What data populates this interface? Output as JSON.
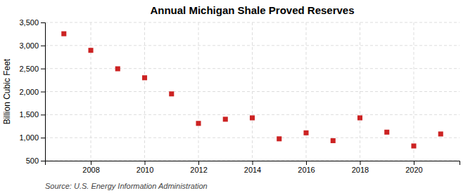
{
  "chart_data": {
    "type": "scatter",
    "title": "Annual Michigan Shale Proved Reserves",
    "y_label": "Billion Cubic Feet",
    "source": "Source: U.S. Energy Information Administration",
    "x": [
      2007,
      2008,
      2009,
      2010,
      2011,
      2012,
      2013,
      2014,
      2015,
      2016,
      2017,
      2018,
      2019,
      2020,
      2021
    ],
    "values": [
      3255,
      2895,
      2495,
      2300,
      1950,
      1310,
      1400,
      1430,
      975,
      1105,
      935,
      1430,
      1120,
      820,
      1080
    ],
    "color": "#cc2222",
    "marker": "square",
    "xlim": [
      2006.3,
      2021.7
    ],
    "xticks": [
      2008,
      2010,
      2012,
      2014,
      2016,
      2018,
      2020
    ],
    "ylim": [
      500,
      3500
    ],
    "yticks": [
      500,
      {
        "value": 1000,
        "label": "1,000"
      },
      {
        "value": 1500,
        "label": "1,500"
      },
      {
        "value": 2000,
        "label": "2,000"
      },
      {
        "value": 2500,
        "label": "2,500"
      },
      {
        "value": 3000,
        "label": "3,000"
      },
      {
        "value": 3500,
        "label": "3,500"
      }
    ],
    "grid": true
  }
}
